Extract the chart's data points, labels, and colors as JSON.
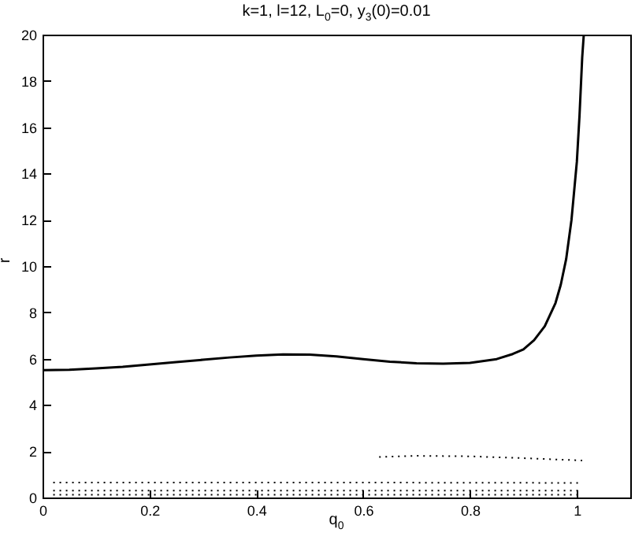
{
  "chart_data": {
    "type": "line",
    "title": "k=1, l=12, L$_{0}$=0, y$_{3}$(0)=0.01",
    "xlabel": "q$_{0}$",
    "ylabel": "r",
    "xlim": [
      0,
      1.1
    ],
    "xticks": [
      0,
      0.2,
      0.4,
      0.6,
      0.8,
      1
    ],
    "ylim": [
      0,
      20
    ],
    "yticks": [
      0,
      2,
      4,
      6,
      8,
      10,
      12,
      14,
      16,
      18,
      20
    ],
    "grid": false,
    "legend": false,
    "marker": "none",
    "series": [
      {
        "color": "#000000",
        "line_style": "solid",
        "x": [
          0,
          0.05,
          0.1,
          0.15,
          0.2,
          0.25,
          0.3,
          0.35,
          0.4,
          0.45,
          0.5,
          0.55,
          0.6,
          0.65,
          0.7,
          0.75,
          0.8,
          0.85,
          0.88,
          0.9,
          0.92,
          0.94,
          0.96,
          0.97,
          0.98,
          0.99,
          1.0,
          1.005,
          1.01,
          1.013
        ],
        "values": [
          5.5,
          5.52,
          5.58,
          5.65,
          5.75,
          5.85,
          5.95,
          6.05,
          6.13,
          6.18,
          6.17,
          6.1,
          5.98,
          5.87,
          5.8,
          5.78,
          5.82,
          5.98,
          6.2,
          6.4,
          6.8,
          7.4,
          8.4,
          9.2,
          10.3,
          12,
          14.5,
          16.5,
          19,
          20
        ]
      },
      {
        "color": "#000000",
        "line_style": "dotted",
        "x": [
          0.63,
          0.7,
          0.8,
          0.9,
          1.01
        ],
        "values": [
          1.75,
          1.8,
          1.78,
          1.7,
          1.6
        ]
      },
      {
        "color": "#000000",
        "line_style": "dotted",
        "x": [
          0.02,
          0.5,
          1.01
        ],
        "values": [
          0.65,
          0.65,
          0.63
        ]
      },
      {
        "color": "#000000",
        "line_style": "dotted",
        "x": [
          0.02,
          0.5,
          1.01
        ],
        "values": [
          0.3,
          0.3,
          0.3
        ]
      },
      {
        "color": "#000000",
        "line_style": "dotted",
        "x": [
          0.02,
          0.5,
          1.01
        ],
        "values": [
          0.12,
          0.12,
          0.12
        ]
      }
    ]
  }
}
